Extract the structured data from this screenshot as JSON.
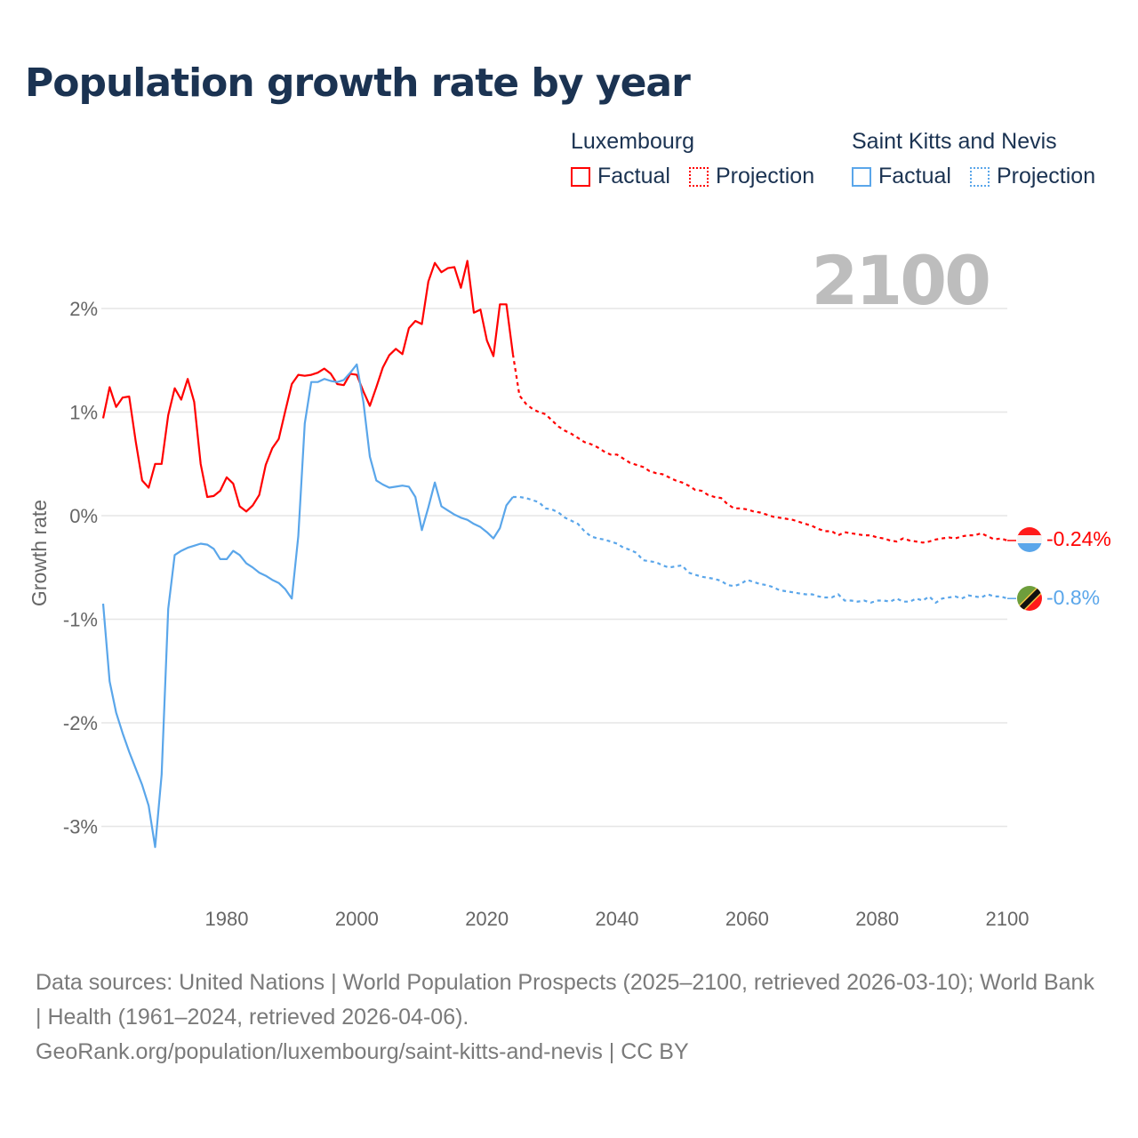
{
  "title": "Population growth rate by year",
  "legend": {
    "groups": [
      {
        "name": "Luxembourg",
        "factual": "Factual",
        "projection": "Projection",
        "color": "#ff0000"
      },
      {
        "name": "Saint Kitts and Nevis",
        "factual": "Factual",
        "projection": "Projection",
        "color": "#5aa6ea"
      }
    ]
  },
  "year_display": "2100",
  "footer": {
    "sources": "Data sources: United Nations | World Population Prospects (2025–2100, retrieved 2026-03-10); World Bank | Health (1961–2024, retrieved 2026-04-06).",
    "link": "GeoRank.org/population/luxembourg/saint-kitts-and-nevis | CC BY"
  },
  "chart_data": {
    "type": "line",
    "title": "Population growth rate by year",
    "xlabel": "",
    "ylabel": "Growth rate",
    "xlim": [
      1961,
      2100
    ],
    "ylim": [
      -3.5,
      2.6
    ],
    "x_ticks": [
      1980,
      2000,
      2020,
      2040,
      2060,
      2080,
      2100
    ],
    "x_tick_labels": [
      "1980",
      "2000",
      "2020",
      "2040",
      "2060",
      "2080",
      "2100"
    ],
    "y_ticks": [
      2,
      1,
      0,
      -1,
      -2,
      -3
    ],
    "y_tick_labels": [
      "2%",
      "1%",
      "0%",
      "-1%",
      "-2%",
      "-3%"
    ],
    "grid": true,
    "legend_position": "top-right",
    "series": [
      {
        "name": "Luxembourg",
        "color": "#ff0000",
        "end_label": "-0.24%",
        "factual_start": 1961,
        "factual": [
          0.94,
          1.24,
          1.05,
          1.14,
          1.15,
          0.72,
          0.34,
          0.27,
          0.5,
          0.5,
          0.97,
          1.23,
          1.12,
          1.32,
          1.1,
          0.5,
          0.18,
          0.19,
          0.24,
          0.37,
          0.31,
          0.09,
          0.04,
          0.1,
          0.2,
          0.49,
          0.65,
          0.74,
          1.01,
          1.27,
          1.36,
          1.35,
          1.36,
          1.38,
          1.42,
          1.37,
          1.27,
          1.26,
          1.37,
          1.36,
          1.2,
          1.06,
          1.24,
          1.43,
          1.55,
          1.61,
          1.56,
          1.81,
          1.88,
          1.85,
          2.26,
          2.44,
          2.35,
          2.39,
          2.4,
          2.2,
          2.46,
          1.96,
          1.99,
          1.69,
          1.54,
          2.04,
          2.04,
          1.56
        ],
        "projection_start": 2025,
        "projection": [
          1.16,
          1.08,
          1.03,
          1.0,
          0.98,
          0.92,
          0.86,
          0.82,
          0.79,
          0.75,
          0.71,
          0.69,
          0.66,
          0.62,
          0.59,
          0.59,
          0.55,
          0.51,
          0.49,
          0.47,
          0.43,
          0.41,
          0.4,
          0.37,
          0.34,
          0.32,
          0.29,
          0.25,
          0.24,
          0.2,
          0.18,
          0.17,
          0.11,
          0.07,
          0.07,
          0.06,
          0.04,
          0.03,
          0.01,
          -0.01,
          -0.02,
          -0.03,
          -0.04,
          -0.06,
          -0.08,
          -0.1,
          -0.13,
          -0.15,
          -0.15,
          -0.19,
          -0.16,
          -0.17,
          -0.18,
          -0.19,
          -0.19,
          -0.21,
          -0.22,
          -0.24,
          -0.25,
          -0.22,
          -0.24,
          -0.25,
          -0.26,
          -0.25,
          -0.23,
          -0.22,
          -0.21,
          -0.22,
          -0.2,
          -0.19,
          -0.19,
          -0.17,
          -0.2,
          -0.23,
          -0.22,
          -0.24
        ]
      },
      {
        "name": "Saint Kitts and Nevis",
        "color": "#5aa6ea",
        "end_label": "-0.8%",
        "factual_start": 1961,
        "factual": [
          -0.85,
          -1.6,
          -1.9,
          -2.1,
          -2.28,
          -2.44,
          -2.6,
          -2.8,
          -3.2,
          -2.5,
          -0.9,
          -0.38,
          -0.34,
          -0.31,
          -0.29,
          -0.27,
          -0.28,
          -0.32,
          -0.42,
          -0.42,
          -0.34,
          -0.38,
          -0.46,
          -0.5,
          -0.55,
          -0.58,
          -0.62,
          -0.65,
          -0.71,
          -0.8,
          -0.2,
          0.89,
          1.29,
          1.29,
          1.32,
          1.3,
          1.29,
          1.31,
          1.38,
          1.46,
          1.1,
          0.57,
          0.34,
          0.3,
          0.27,
          0.28,
          0.29,
          0.28,
          0.18,
          -0.14,
          0.08,
          0.32,
          0.09,
          0.05,
          0.01,
          -0.02,
          -0.04,
          -0.08,
          -0.11,
          -0.16,
          -0.22,
          -0.12,
          0.1,
          0.18
        ],
        "projection_start": 2025,
        "projection": [
          0.18,
          0.17,
          0.15,
          0.13,
          0.07,
          0.06,
          0.03,
          -0.02,
          -0.05,
          -0.08,
          -0.15,
          -0.2,
          -0.22,
          -0.23,
          -0.25,
          -0.27,
          -0.31,
          -0.33,
          -0.36,
          -0.43,
          -0.44,
          -0.45,
          -0.48,
          -0.5,
          -0.49,
          -0.48,
          -0.55,
          -0.57,
          -0.59,
          -0.6,
          -0.61,
          -0.63,
          -0.67,
          -0.68,
          -0.66,
          -0.62,
          -0.64,
          -0.66,
          -0.67,
          -0.69,
          -0.72,
          -0.73,
          -0.74,
          -0.75,
          -0.76,
          -0.76,
          -0.78,
          -0.79,
          -0.79,
          -0.76,
          -0.82,
          -0.82,
          -0.83,
          -0.82,
          -0.84,
          -0.82,
          -0.82,
          -0.83,
          -0.8,
          -0.83,
          -0.83,
          -0.8,
          -0.82,
          -0.78,
          -0.84,
          -0.8,
          -0.79,
          -0.78,
          -0.8,
          -0.77,
          -0.78,
          -0.79,
          -0.76,
          -0.78,
          -0.78,
          -0.8
        ]
      }
    ]
  }
}
